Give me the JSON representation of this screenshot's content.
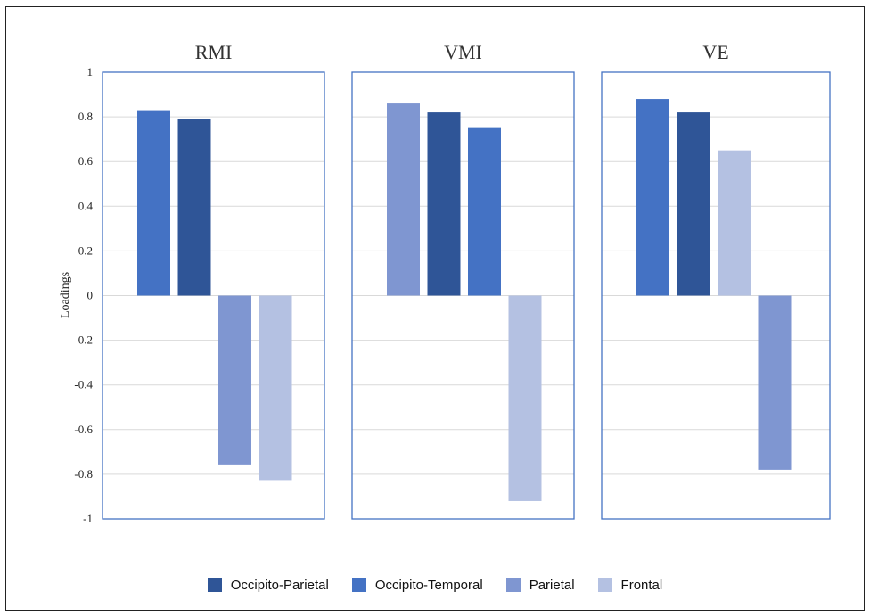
{
  "chart_data": {
    "type": "bar",
    "ylabel": "Loadings",
    "ylim": [
      -1,
      1
    ],
    "yticks": [
      1,
      0.8,
      0.6,
      0.4,
      0.2,
      0,
      -0.2,
      -0.4,
      -0.6,
      -0.8,
      -1
    ],
    "ytick_labels": [
      "1",
      "0.8",
      "0.6",
      "0.4",
      "0.2",
      "0",
      "-0.2",
      "-0.4",
      "-0.6",
      "-0.8",
      "-1"
    ],
    "grid": true,
    "legend_position": "bottom",
    "legend": [
      {
        "name": "Occipito-Parietal",
        "color": "#2F5597"
      },
      {
        "name": "Occipito-Temporal",
        "color": "#4472C4"
      },
      {
        "name": "Parietal",
        "color": "#7F96D1"
      },
      {
        "name": "Frontal",
        "color": "#B4C1E2"
      }
    ],
    "panels": [
      {
        "title": "RMI",
        "bars": [
          {
            "series": "Occipito-Temporal",
            "value": 0.83
          },
          {
            "series": "Occipito-Parietal",
            "value": 0.79
          },
          {
            "series": "Parietal",
            "value": -0.76
          },
          {
            "series": "Frontal",
            "value": -0.83
          }
        ]
      },
      {
        "title": "VMI",
        "bars": [
          {
            "series": "Parietal",
            "value": 0.86
          },
          {
            "series": "Occipito-Parietal",
            "value": 0.82
          },
          {
            "series": "Occipito-Temporal",
            "value": 0.75
          },
          {
            "series": "Frontal",
            "value": -0.92
          }
        ]
      },
      {
        "title": "VE",
        "bars": [
          {
            "series": "Occipito-Temporal",
            "value": 0.88
          },
          {
            "series": "Occipito-Parietal",
            "value": 0.82
          },
          {
            "series": "Frontal",
            "value": 0.65
          },
          {
            "series": "Parietal",
            "value": -0.78
          }
        ]
      }
    ],
    "gridline_color": "#d9d9d9",
    "panel_border_color": "#4472C4"
  }
}
